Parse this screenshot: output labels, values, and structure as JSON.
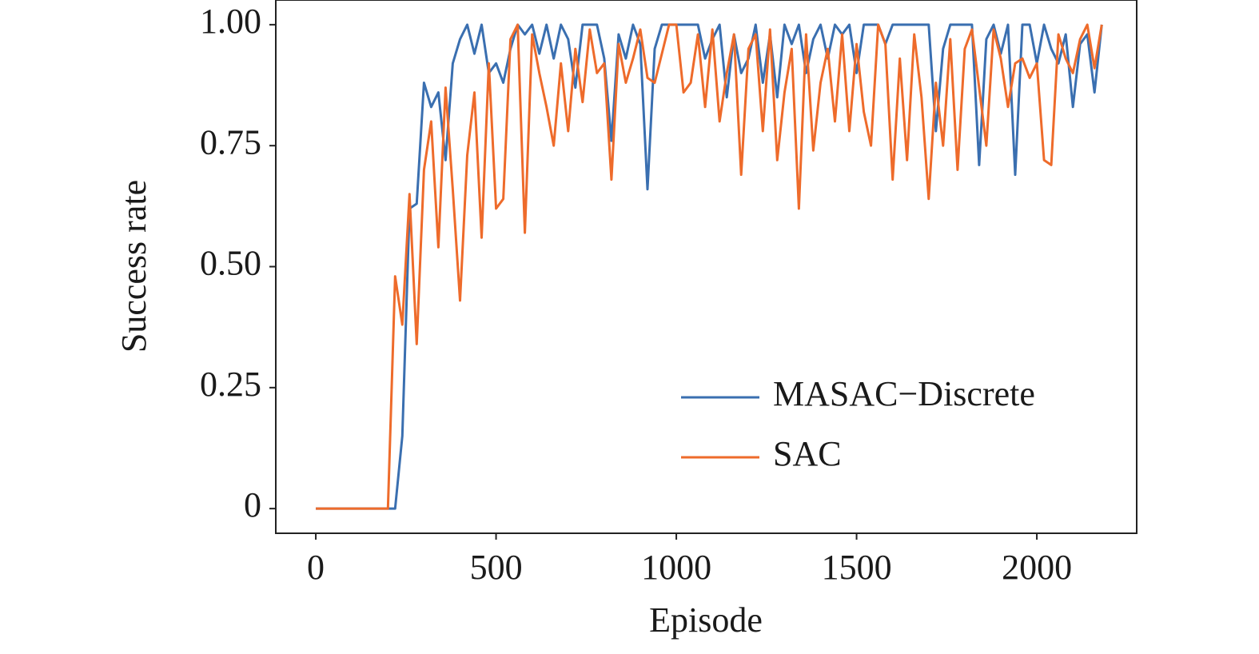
{
  "chart_data": {
    "type": "line",
    "xlabel": "Episode",
    "ylabel": "Success rate",
    "x": [
      0,
      20,
      40,
      60,
      80,
      100,
      120,
      140,
      160,
      180,
      200,
      220,
      240,
      260,
      280,
      300,
      320,
      340,
      360,
      380,
      400,
      420,
      440,
      460,
      480,
      500,
      520,
      540,
      560,
      580,
      600,
      620,
      640,
      660,
      680,
      700,
      720,
      740,
      760,
      780,
      800,
      820,
      840,
      860,
      880,
      900,
      920,
      940,
      960,
      980,
      1000,
      1020,
      1040,
      1060,
      1080,
      1100,
      1120,
      1140,
      1160,
      1180,
      1200,
      1220,
      1240,
      1260,
      1280,
      1300,
      1320,
      1340,
      1360,
      1380,
      1400,
      1420,
      1440,
      1460,
      1480,
      1500,
      1520,
      1540,
      1560,
      1580,
      1600,
      1620,
      1640,
      1660,
      1680,
      1700,
      1720,
      1740,
      1760,
      1780,
      1800,
      1820,
      1840,
      1860,
      1880,
      1900,
      1920,
      1940,
      1960,
      1980,
      2000,
      2020,
      2040,
      2060,
      2080,
      2100,
      2120,
      2140,
      2160,
      2180
    ],
    "series": [
      {
        "name": "MASAC−Discrete",
        "color": "#3a6fb0",
        "values": [
          0,
          0,
          0,
          0,
          0,
          0,
          0,
          0,
          0,
          0,
          0,
          0,
          0.15,
          0.62,
          0.63,
          0.88,
          0.83,
          0.86,
          0.72,
          0.92,
          0.97,
          1.0,
          0.94,
          1.0,
          0.9,
          0.92,
          0.88,
          0.95,
          1.0,
          0.98,
          1.0,
          0.94,
          1.0,
          0.93,
          1.0,
          0.97,
          0.87,
          1.0,
          1.0,
          1.0,
          0.93,
          0.76,
          0.98,
          0.93,
          1.0,
          0.96,
          0.66,
          0.95,
          1.0,
          1.0,
          1.0,
          1.0,
          1.0,
          1.0,
          0.93,
          0.97,
          1.0,
          0.85,
          0.98,
          0.9,
          0.93,
          1.0,
          0.88,
          0.98,
          0.85,
          1.0,
          0.96,
          1.0,
          0.9,
          0.97,
          1.0,
          0.93,
          1.0,
          0.98,
          1.0,
          0.9,
          1.0,
          1.0,
          1.0,
          0.96,
          1.0,
          1.0,
          1.0,
          1.0,
          1.0,
          1.0,
          0.78,
          0.95,
          1.0,
          1.0,
          1.0,
          1.0,
          0.71,
          0.97,
          1.0,
          0.94,
          1.0,
          0.69,
          1.0,
          1.0,
          0.92,
          1.0,
          0.95,
          0.92,
          0.98,
          0.83,
          0.96,
          0.98,
          0.86,
          1.0
        ]
      },
      {
        "name": "SAC",
        "color": "#ee6b2b",
        "values": [
          0,
          0,
          0,
          0,
          0,
          0,
          0,
          0,
          0,
          0,
          0,
          0.48,
          0.38,
          0.65,
          0.34,
          0.7,
          0.8,
          0.54,
          0.87,
          0.66,
          0.43,
          0.73,
          0.86,
          0.56,
          0.92,
          0.62,
          0.64,
          0.97,
          1.0,
          0.57,
          0.98,
          0.9,
          0.83,
          0.75,
          0.92,
          0.78,
          0.95,
          0.84,
          0.99,
          0.9,
          0.92,
          0.68,
          0.96,
          0.88,
          0.93,
          0.99,
          0.89,
          0.88,
          0.94,
          1.0,
          1.0,
          0.86,
          0.88,
          0.98,
          0.83,
          0.99,
          0.8,
          0.9,
          0.98,
          0.69,
          0.95,
          0.98,
          0.78,
          0.99,
          0.72,
          0.86,
          0.95,
          0.62,
          0.98,
          0.74,
          0.88,
          0.95,
          0.8,
          0.98,
          0.78,
          0.96,
          0.82,
          0.75,
          1.0,
          0.96,
          0.68,
          0.93,
          0.72,
          0.98,
          0.85,
          0.64,
          0.88,
          0.75,
          0.97,
          0.7,
          0.95,
          0.99,
          0.87,
          0.75,
          0.99,
          0.93,
          0.83,
          0.92,
          0.93,
          0.89,
          0.92,
          0.72,
          0.71,
          0.98,
          0.93,
          0.9,
          0.97,
          1.0,
          0.91,
          1.0
        ]
      }
    ],
    "xlim": [
      -111,
      2277
    ],
    "xticks": [
      0,
      500,
      1000,
      1500,
      2000
    ],
    "ylim": [
      -0.051,
      1.051
    ],
    "yticks": [
      0,
      0.25,
      {
        "value": 0.5,
        "label": "0.50"
      },
      0.75,
      {
        "value": 1,
        "label": "1.00"
      }
    ],
    "grid": false,
    "legend": "lower right"
  }
}
